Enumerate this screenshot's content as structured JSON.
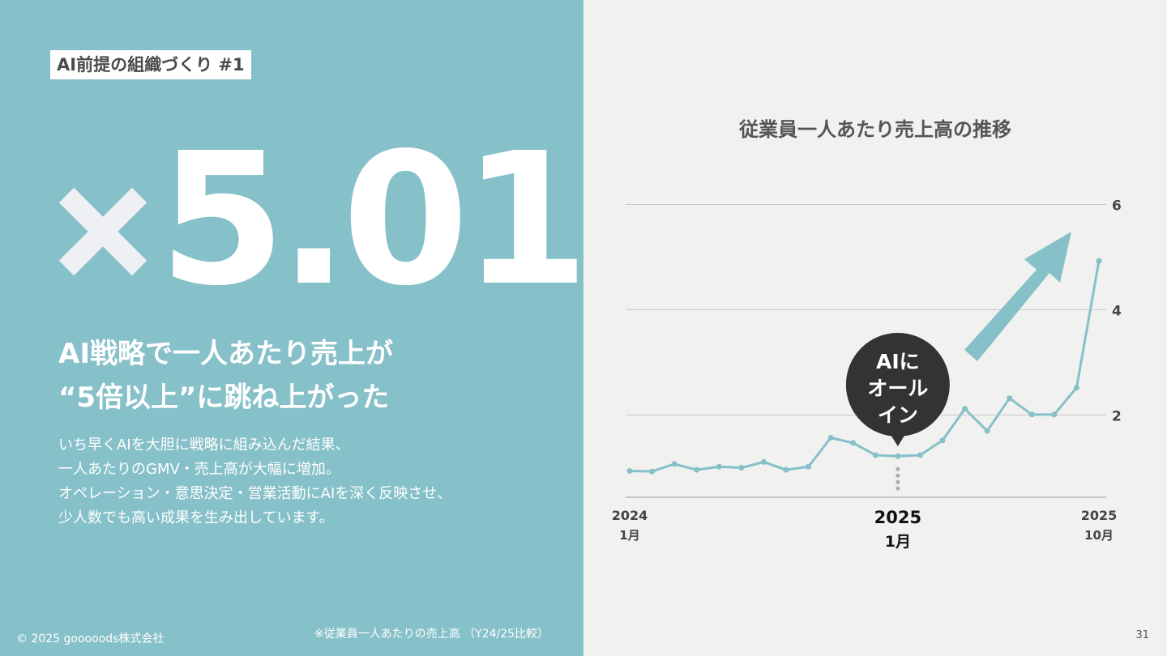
{
  "slide": {
    "tag": "AI前提の組織づくり #1",
    "big_number": "5.01",
    "big_multiplier_icon": "times-icon",
    "headline_line1": "AI戦略で一人あたり売上が",
    "headline_line2": "“5倍以上”に跳ね上がった",
    "body_line1": "いち早くAIを大胆に戦略に組み込んだ結果、",
    "body_line2": "一人あたりのGMV・売上高が大幅に増加。",
    "body_line3": "オペレーション・意思決定・営業活動にAIを深く反映させ、",
    "body_line4": "少人数でも高い成果を生み出しています。",
    "copyright": "© 2025 gooooods株式会社",
    "footnote": "※従業員一人あたりの売上高 （Y24/25比較）",
    "page_number": "31",
    "colors": {
      "left_bg": "#86c0c9",
      "right_bg": "#f1f1ef",
      "line": "#86c0c9",
      "bubble": "#333333",
      "arrow": "#86c0c9"
    }
  },
  "chart_data": {
    "type": "line",
    "title": "従業員一人あたり売上高の推移",
    "x_labels": [
      {
        "index": 0,
        "year": "2024",
        "month": "1月",
        "emphasis": false
      },
      {
        "index": 12,
        "year": "2025",
        "month": "1月",
        "emphasis": true
      },
      {
        "index": 21,
        "year": "2025",
        "month": "10月",
        "emphasis": false
      }
    ],
    "yticks": [
      "2",
      "4",
      "6"
    ],
    "ylim": [
      0.5,
      6
    ],
    "grid": true,
    "values": [
      0.97,
      0.96,
      1.1,
      0.99,
      1.05,
      1.03,
      1.14,
      0.99,
      1.05,
      1.6,
      1.5,
      1.27,
      1.25,
      1.27,
      1.55,
      2.15,
      1.73,
      2.35,
      2.04,
      2.04,
      2.55,
      4.96
    ],
    "annotation": {
      "index": 12,
      "line1": "AIに",
      "line2": "オール",
      "line3": "イン"
    }
  }
}
